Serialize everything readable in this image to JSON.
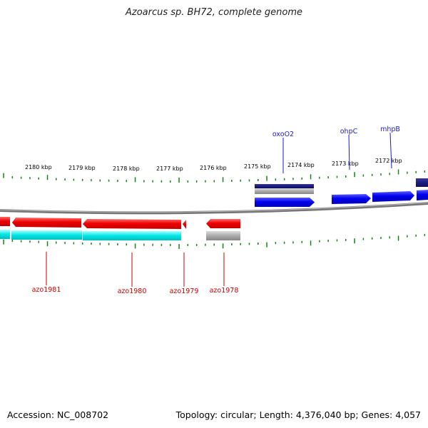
{
  "title": "Azoarcus sp. BH72, complete genome",
  "footer": {
    "accession": "Accession: NC_008702",
    "summary": "Topology: circular; Length: 4,376,040 bp; Genes: 4,057"
  },
  "scale_labels": [
    "2180 kbp",
    "2179 kbp",
    "2178 kbp",
    "2177 kbp",
    "2176 kbp",
    "2175 kbp",
    "2174 kbp",
    "2173 kbp",
    "2172 kbp"
  ],
  "forward_gene_labels": [
    "oxoO2",
    "ohpC",
    "mhpB"
  ],
  "reverse_gene_labels": [
    "azo1981",
    "azo1980",
    "azo1979",
    "azo1978"
  ],
  "colors": {
    "forward_gene": "#0000ee",
    "forward_label": "#1a1acc",
    "reverse_gene": "#ee0000",
    "reverse_label": "#cc0000",
    "reverse_cds": "#00e5e5",
    "tick": "#118811",
    "backbone": "#888888",
    "rna_dark": "#1a1a80",
    "pseudo": "#aaaaaa"
  }
}
